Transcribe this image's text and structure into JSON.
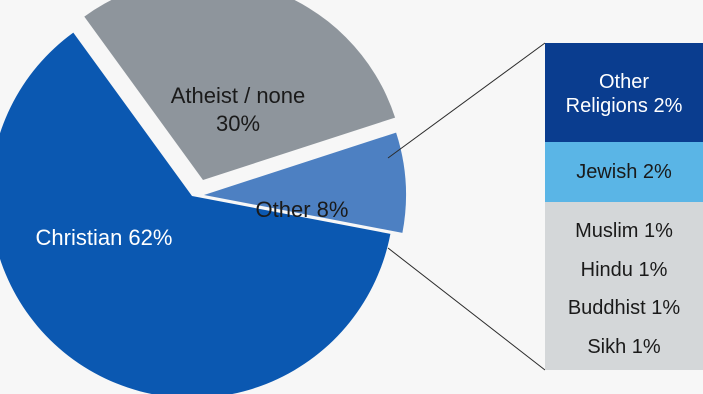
{
  "chart_data": [
    {
      "type": "pie",
      "slices": [
        {
          "label_lines": [
            "Christian 62%"
          ],
          "name": "Christian",
          "value": 62,
          "color": "#0b58b1",
          "text_color": "#ffffff"
        },
        {
          "label_lines": [
            "Atheist / none",
            "30%"
          ],
          "name": "Atheist / none",
          "value": 30,
          "color": "#8e959c",
          "text_color": "#1a1a1a"
        },
        {
          "label_lines": [
            "Other 8%"
          ],
          "name": "Other",
          "value": 8,
          "color": "#4d80c2",
          "text_color": "#1a1a1a",
          "exploded": true
        }
      ]
    },
    {
      "type": "bar",
      "stacked": true,
      "segments": [
        {
          "label_lines": [
            "Other",
            "Religions 2%"
          ],
          "name": "Other Religions",
          "value": 2,
          "color": "#0a3d8f",
          "text_color": "#ffffff"
        },
        {
          "label_lines": [
            "Jewish 2%"
          ],
          "name": "Jewish",
          "value": 2,
          "color": "#5ab5e6",
          "text_color": "#1a1a1a"
        },
        {
          "label_lines": [
            "Muslim  1%",
            "Hindu  1%",
            "Buddhist  1%",
            "Sikh  1%"
          ],
          "names": [
            "Muslim",
            "Hindu",
            "Buddhist",
            "Sikh"
          ],
          "values": [
            1,
            1,
            1,
            1
          ],
          "color": "#d4d7d9",
          "text_color": "#1a1a1a"
        }
      ]
    }
  ]
}
